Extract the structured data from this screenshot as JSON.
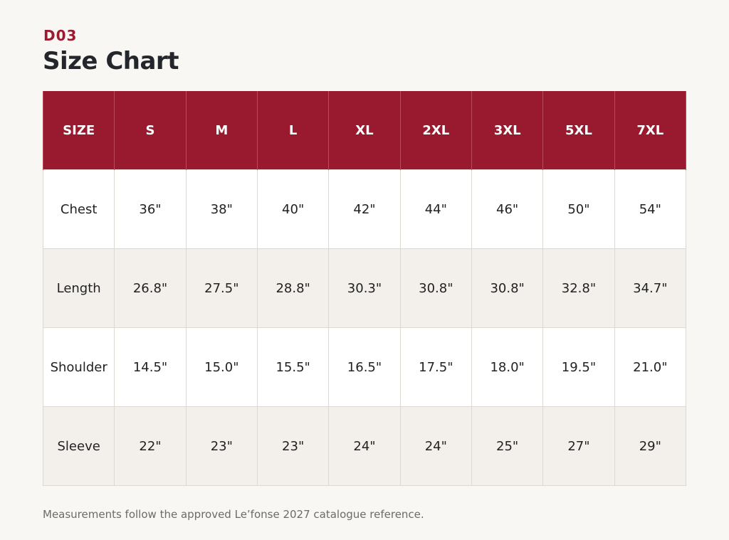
{
  "header": {
    "code": "D03",
    "title": "Size Chart"
  },
  "table": {
    "columns": [
      "SIZE",
      "S",
      "M",
      "L",
      "XL",
      "2XL",
      "3XL",
      "5XL",
      "7XL"
    ],
    "rows": [
      {
        "label": "Chest",
        "values": [
          "36\"",
          "38\"",
          "40\"",
          "42\"",
          "44\"",
          "46\"",
          "50\"",
          "54\""
        ]
      },
      {
        "label": "Length",
        "values": [
          "26.8\"",
          "27.5\"",
          "28.8\"",
          "30.3\"",
          "30.8\"",
          "30.8\"",
          "32.8\"",
          "34.7\""
        ]
      },
      {
        "label": "Shoulder",
        "values": [
          "14.5\"",
          "15.0\"",
          "15.5\"",
          "16.5\"",
          "17.5\"",
          "18.0\"",
          "19.5\"",
          "21.0\""
        ]
      },
      {
        "label": "Sleeve",
        "values": [
          "22\"",
          "23\"",
          "23\"",
          "24\"",
          "24\"",
          "25\"",
          "27\"",
          "29\""
        ]
      }
    ]
  },
  "footnote": "Measurements follow the approved Le’fonse 2027 catalogue reference.",
  "colors": {
    "accent": "#991a2f",
    "background": "#f9f7f3",
    "row_alt": "#f3f0ec"
  }
}
